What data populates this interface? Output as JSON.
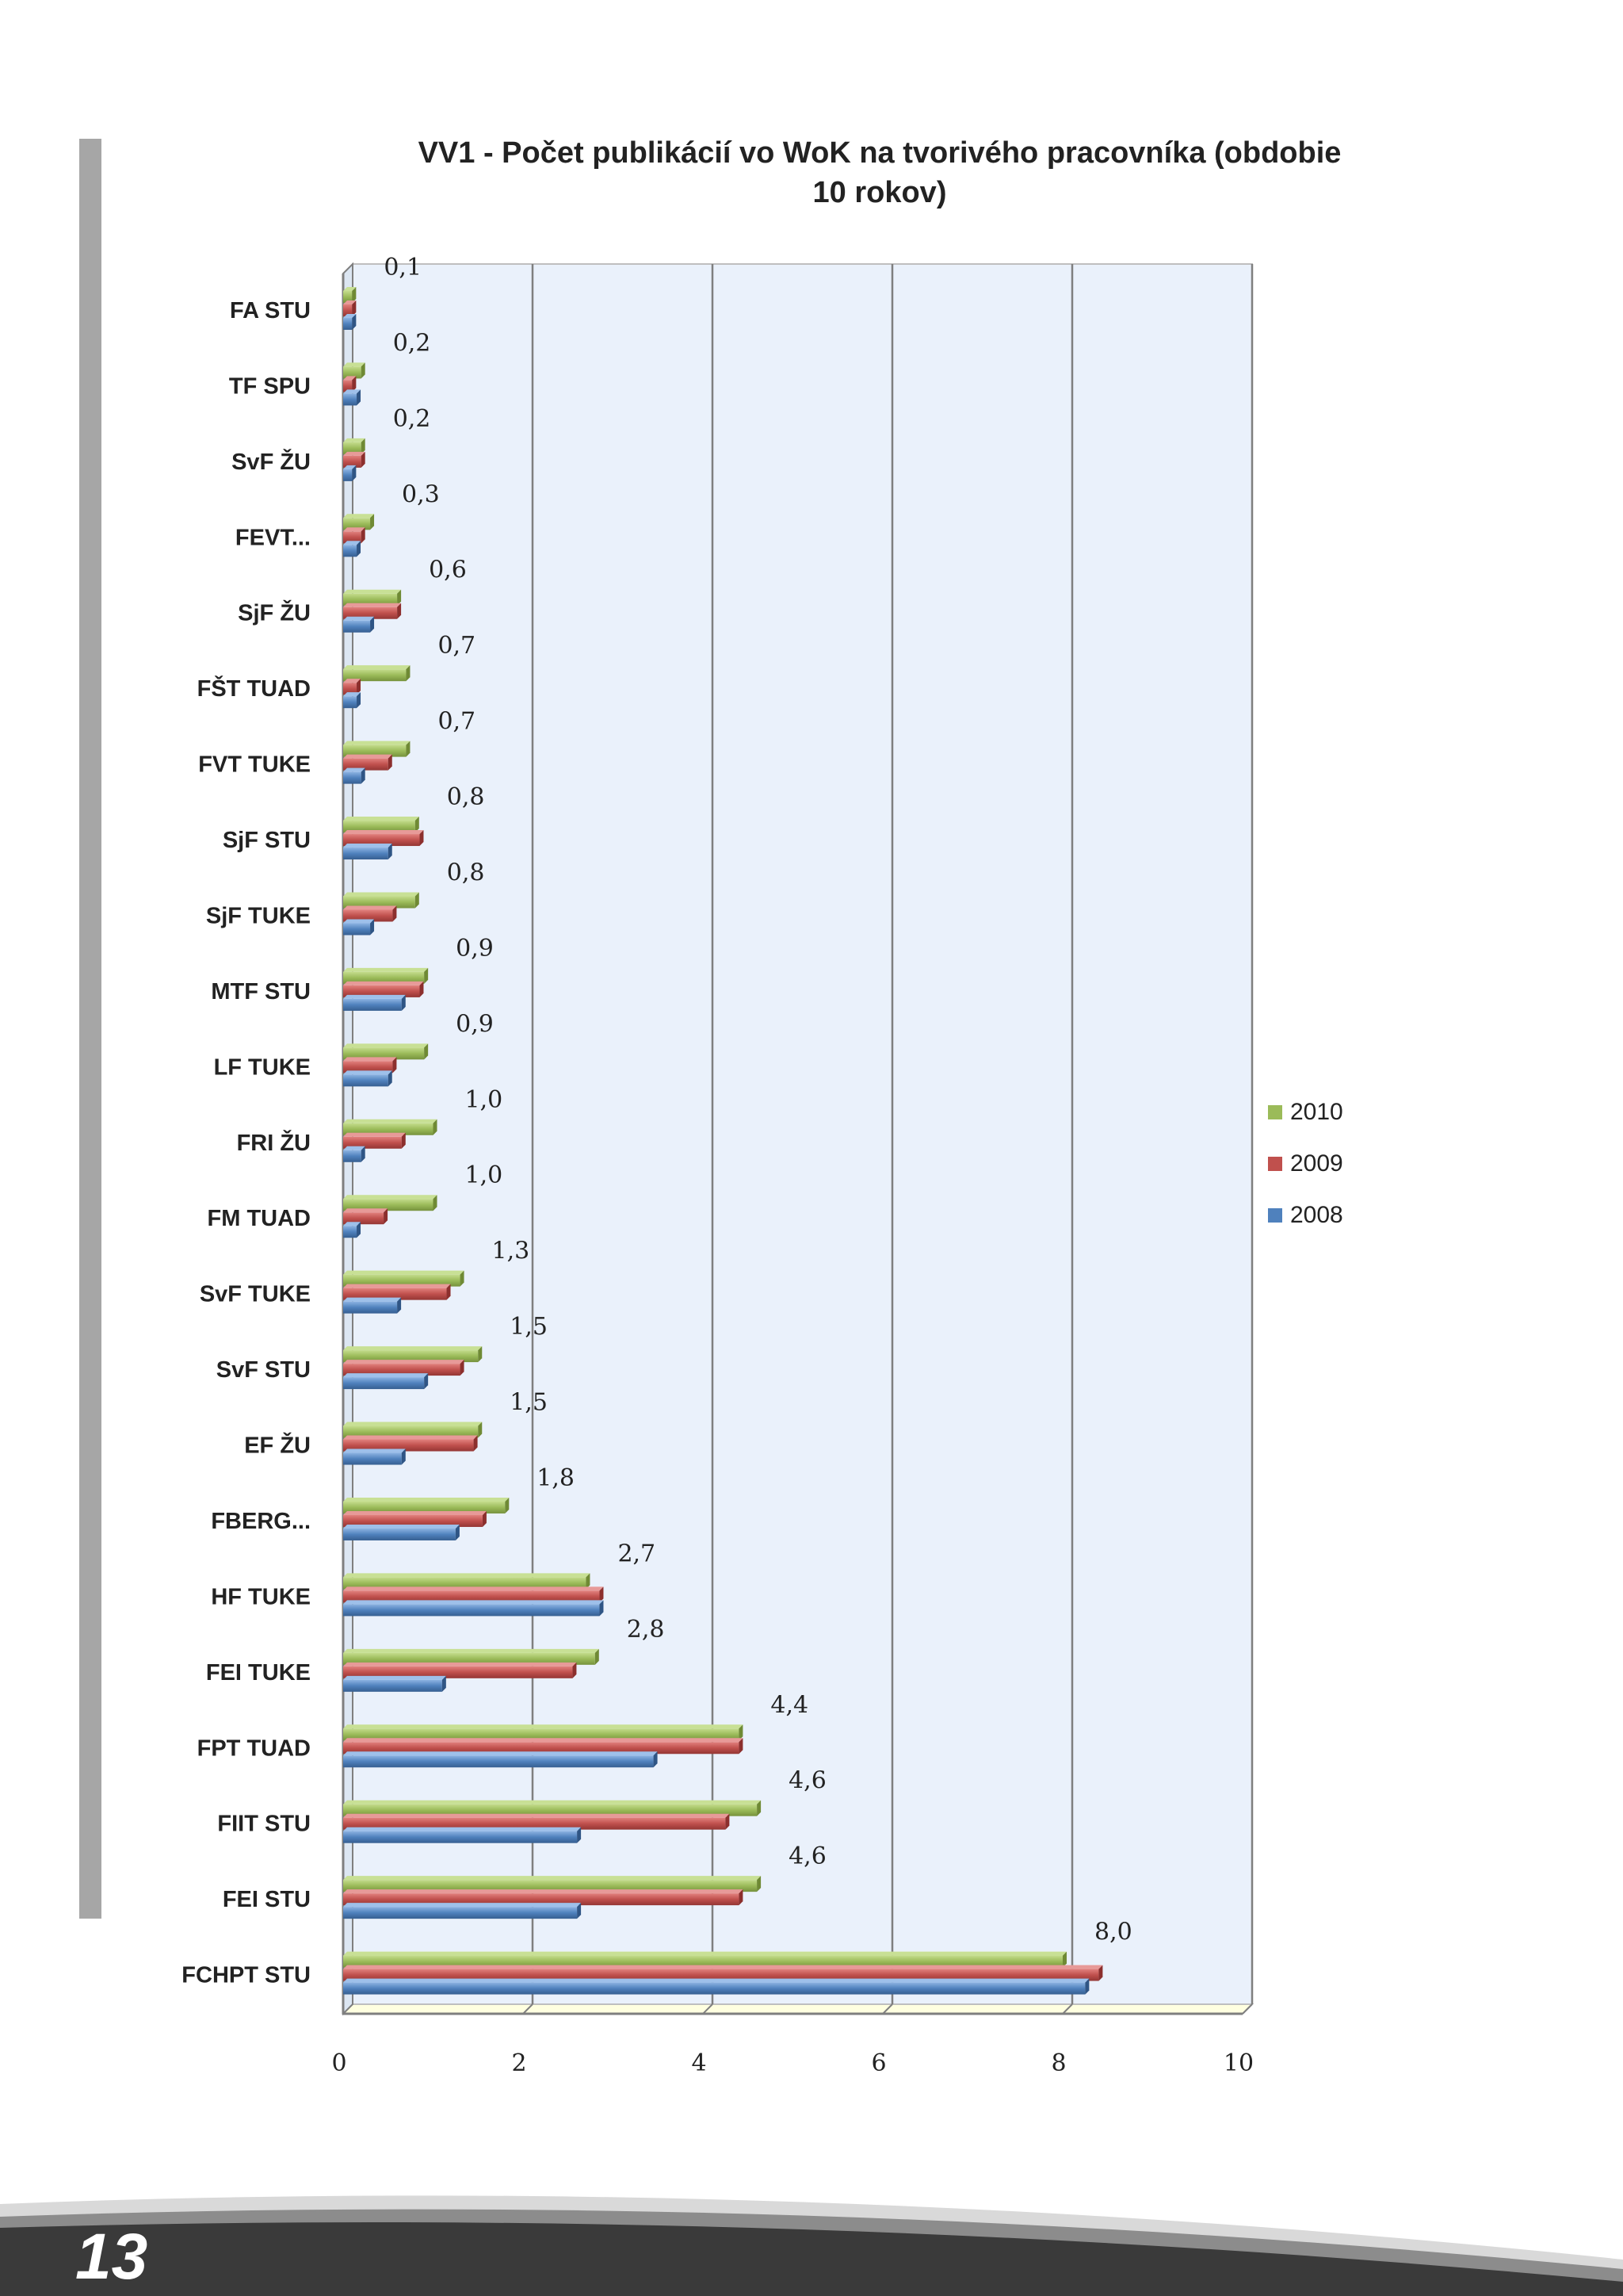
{
  "page": {
    "number": "13"
  },
  "chart_data": {
    "type": "bar",
    "orientation": "horizontal",
    "title": "VV1 - Počet publikácií vo WoK na tvorivého pracovníka (obdobie\n10 rokov)",
    "xlabel": "",
    "ylabel": "",
    "xlim": [
      0,
      10
    ],
    "x_ticks": [
      "0",
      "2",
      "4",
      "6",
      "8",
      "10"
    ],
    "grid": true,
    "legend_position": "right",
    "categories": [
      "FA STU",
      "TF SPU",
      "SvF ŽU",
      "FEVT...",
      "SjF ŽU",
      "FŠT TUAD",
      "FVT TUKE",
      "SjF STU",
      "SjF TUKE",
      "MTF STU",
      "LF TUKE",
      "FRI ŽU",
      "FM TUAD",
      "SvF TUKE",
      "SvF STU",
      "EF ŽU",
      "FBERG...",
      "HF TUKE",
      "FEI TUKE",
      "FPT TUAD",
      "FIIT STU",
      "FEI STU",
      "FCHPT STU"
    ],
    "series": [
      {
        "name": "2010",
        "color": "#9bbb59",
        "values": [
          0.1,
          0.2,
          0.2,
          0.3,
          0.6,
          0.7,
          0.7,
          0.8,
          0.8,
          0.9,
          0.9,
          1.0,
          1.0,
          1.3,
          1.5,
          1.5,
          1.8,
          2.7,
          2.8,
          4.4,
          4.6,
          4.6,
          8.0
        ]
      },
      {
        "name": "2009",
        "color": "#c0504d",
        "values": [
          0.1,
          0.1,
          0.2,
          0.2,
          0.6,
          0.15,
          0.5,
          0.85,
          0.55,
          0.85,
          0.55,
          0.65,
          0.45,
          1.15,
          1.3,
          1.45,
          1.55,
          2.85,
          2.55,
          4.4,
          4.25,
          4.4,
          8.4
        ]
      },
      {
        "name": "2008",
        "color": "#4f81bd",
        "values": [
          0.1,
          0.15,
          0.1,
          0.15,
          0.3,
          0.15,
          0.2,
          0.5,
          0.3,
          0.65,
          0.5,
          0.2,
          0.15,
          0.6,
          0.9,
          0.65,
          1.25,
          2.85,
          1.1,
          3.45,
          2.6,
          2.6,
          8.25
        ]
      }
    ],
    "data_labels": [
      "0,1",
      "0,2",
      "0,2",
      "0,3",
      "0,6",
      "0,7",
      "0,7",
      "0,8",
      "0,8",
      "0,9",
      "0,9",
      "1,0",
      "1,0",
      "1,3",
      "1,5",
      "1,5",
      "1,8",
      "2,7",
      "2,8",
      "4,4",
      "4,6",
      "4,6",
      "8,0"
    ]
  }
}
